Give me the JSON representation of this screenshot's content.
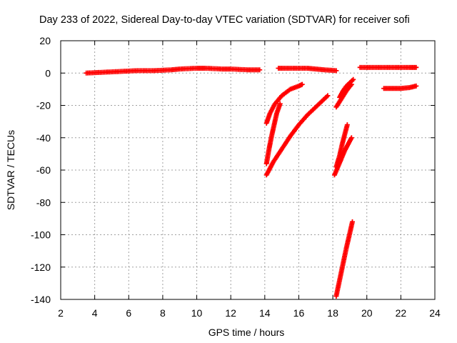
{
  "chart_data": {
    "type": "scatter",
    "title": "Day 233 of 2022, Sidereal Day-to-day VTEC variation (SDTVAR) for receiver sofi",
    "xlabel": "GPS time / hours",
    "ylabel": "SDTVAR / TECUs",
    "xlim": [
      2,
      24
    ],
    "ylim": [
      -140,
      20
    ],
    "xticks": [
      2,
      4,
      6,
      8,
      10,
      12,
      14,
      16,
      18,
      20,
      22,
      24
    ],
    "yticks": [
      20,
      0,
      -20,
      -40,
      -60,
      -80,
      -100,
      -120,
      -140
    ],
    "grid": true,
    "marker_color": "#ff0000",
    "series": [
      {
        "segments": [
          {
            "x": [
              3.5,
              4.5,
              5.5,
              6.5,
              7.5,
              8.5,
              9.0,
              10.0,
              10.5,
              11.5,
              12.0,
              13.0,
              13.7
            ],
            "y": [
              0,
              0.5,
              1,
              1.5,
              1.5,
              2,
              2.5,
              3,
              3,
              2.5,
              2.5,
              2,
              2
            ]
          },
          {
            "x": [
              14.8,
              15.5,
              16.5,
              17.0,
              17.5,
              18.2
            ],
            "y": [
              3,
              3,
              3,
              2.5,
              2,
              1.5
            ]
          },
          {
            "x": [
              19.6,
              20.5,
              21.5,
              22.5,
              22.9
            ],
            "y": [
              3.5,
              3.5,
              3.5,
              3.5,
              3.5
            ]
          },
          {
            "x": [
              21.0,
              21.5,
              22.0,
              22.5,
              22.9
            ],
            "y": [
              -9.5,
              -9.5,
              -9.5,
              -9,
              -8
            ]
          },
          {
            "x": [
              14.1,
              14.3,
              14.6,
              15.0,
              15.5,
              16.0,
              16.2
            ],
            "y": [
              -31,
              -25,
              -19,
              -14,
              -10,
              -8,
              -7
            ]
          },
          {
            "x": [
              14.1,
              14.25,
              14.4,
              14.55,
              14.7,
              14.9
            ],
            "y": [
              -56,
              -47,
              -39,
              -32,
              -25,
              -19
            ]
          },
          {
            "x": [
              14.1,
              14.5,
              15.0,
              15.5,
              16.0,
              16.5,
              17.0,
              17.5,
              17.7
            ],
            "y": [
              -63,
              -55,
              -47,
              -39,
              -32,
              -26,
              -21,
              -16,
              -14
            ]
          },
          {
            "x": [
              18.2,
              18.5,
              18.8,
              19.1
            ],
            "y": [
              -21,
              -16,
              -11,
              -7
            ]
          },
          {
            "x": [
              18.4,
              18.6,
              18.8,
              19.0,
              19.2
            ],
            "y": [
              -15,
              -11,
              -8,
              -6,
              -4
            ]
          },
          {
            "x": [
              18.1,
              18.3,
              18.5,
              18.7,
              18.9,
              19.1
            ],
            "y": [
              -63,
              -58,
              -53,
              -48,
              -44,
              -40
            ]
          },
          {
            "x": [
              18.2,
              18.4,
              18.55,
              18.7,
              18.85
            ],
            "y": [
              -58,
              -51,
              -44,
              -38,
              -32
            ]
          },
          {
            "x": [
              18.2,
              18.4,
              18.6,
              18.8,
              19.0,
              19.15
            ],
            "y": [
              -138,
              -128,
              -118,
              -108,
              -99,
              -92
            ]
          }
        ]
      }
    ]
  }
}
